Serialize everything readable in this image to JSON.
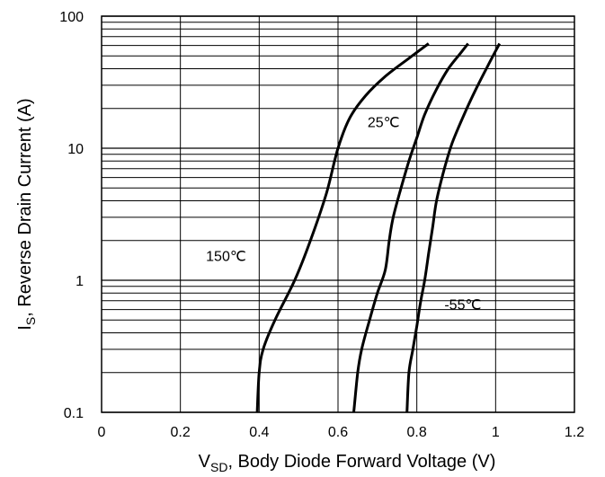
{
  "chart_data": {
    "type": "line",
    "title": "",
    "xlabel": {
      "main": "V",
      "sub": "SD",
      "rest": ", Body Diode Forward Voltage (V)"
    },
    "ylabel": {
      "main": "I",
      "sub": "S",
      "rest": ", Reverse Drain Current (A)"
    },
    "xlim": [
      0,
      1.2
    ],
    "ylim": [
      0.1,
      100
    ],
    "yscale": "log",
    "grid": true,
    "x_ticks": [
      0,
      0.2,
      0.4,
      0.6,
      0.8,
      1,
      1.2
    ],
    "x_tick_labels": [
      "0",
      "0.2",
      "0.4",
      "0.6",
      "0.8",
      "1",
      "1.2"
    ],
    "y_ticks": [
      0.1,
      1,
      10,
      100
    ],
    "y_tick_labels": [
      "0.1",
      "1",
      "10",
      "100"
    ],
    "line_color": "#000000",
    "series": [
      {
        "name": "150℃",
        "label_at": {
          "x": 0.265,
          "y": 1.4
        },
        "x": [
          0.395,
          0.4,
          0.41,
          0.44,
          0.49,
          0.53,
          0.57,
          0.6,
          0.63,
          0.67,
          0.72,
          0.78,
          0.83
        ],
        "y": [
          0.1,
          0.2,
          0.3,
          0.5,
          1.0,
          2.0,
          4.5,
          10,
          17,
          25,
          35,
          48,
          62
        ]
      },
      {
        "name": "25℃",
        "label_at": {
          "x": 0.675,
          "y": 14.5
        },
        "x": [
          0.64,
          0.65,
          0.66,
          0.68,
          0.7,
          0.72,
          0.73,
          0.74,
          0.76,
          0.78,
          0.8,
          0.82,
          0.85,
          0.88,
          0.91,
          0.93
        ],
        "y": [
          0.1,
          0.2,
          0.3,
          0.5,
          0.8,
          1.2,
          2.0,
          3.0,
          5.0,
          8.0,
          12,
          18,
          28,
          40,
          52,
          62
        ]
      },
      {
        "name": "-55℃",
        "label_at": {
          "x": 0.87,
          "y": 0.6
        },
        "x": [
          0.775,
          0.78,
          0.79,
          0.8,
          0.81,
          0.82,
          0.83,
          0.84,
          0.85,
          0.87,
          0.89,
          0.92,
          0.95,
          0.98,
          1.01
        ],
        "y": [
          0.1,
          0.2,
          0.3,
          0.45,
          0.7,
          1.0,
          1.6,
          2.5,
          4.0,
          7.0,
          11,
          18,
          28,
          42,
          62
        ]
      }
    ]
  }
}
